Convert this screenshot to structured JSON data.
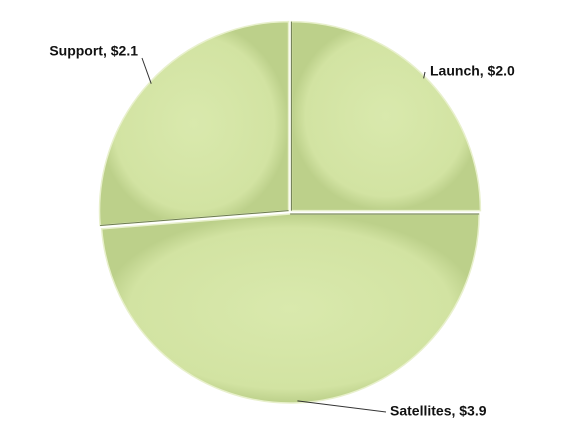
{
  "chart_data": {
    "type": "pie",
    "labels": [
      "Launch, $2.0",
      "Satellites, $3.9",
      "Support, $2.1"
    ],
    "values": [
      2.0,
      3.9,
      2.1
    ],
    "color": "#d4e5a5"
  }
}
